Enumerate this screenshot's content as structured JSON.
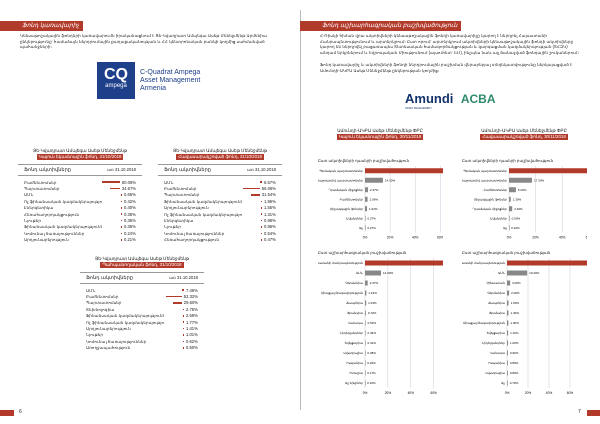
{
  "left": {
    "heading": "Ֆոնդ կառավարիչ",
    "intro": "Կենսաթոշակային ֆոնդերի կառավարումն իրականացնում է Ցե-Կվադրատ Ամպեգա Ասեթ Մենեջմենթ Արմենիա ընկերությունը՝ համաձայն ներդրումային քաղաքականության և ՀՀ կենտրոնական բանկի կողմից սահմանված պահանջների։",
    "logo": {
      "mark": "CQ",
      "sub": "ampega",
      "line1": "C-Quadrat Ampega",
      "line2": "Asset Management",
      "line3": "Armenia"
    },
    "tables": [
      {
        "company": "Ցե-Կվադրատ Ամպեգա Ասեթ Մենեջմենթ",
        "fund": "Կայուն եկամտային ֆոնդ, 31/10/2018",
        "header": "Ֆոնդ ակտիվները",
        "date": "առ 31.10.2018",
        "rows": [
          [
            "Բաժնետոմսեր",
            "60.08%",
            60.08
          ],
          [
            "Պարտատոմսեր",
            "34.67%",
            34.67
          ],
          [
            "ԱՄՆ",
            "0.66%",
            0.66
          ],
          [
            "Ոչ ֆինանսական կազմակերպություններ",
            "0.42%",
            0.42
          ],
          [
            "Էներգետիկա",
            "0.40%",
            0.4
          ],
          [
            "Հեռահաղորդակցություն",
            "0.36%",
            0.36
          ],
          [
            "Նյութեր",
            "0.36%",
            0.36
          ],
          [
            "Ֆինանսական կազմակերպություններ",
            "0.36%",
            0.36
          ],
          [
            "Կոմունալ ծառայություններ",
            "0.24%",
            0.24
          ],
          [
            "Արդյունաբերություն",
            "0.21%",
            0.21
          ]
        ]
      },
      {
        "company": "Ցե-Կվադրատ Ամպեգա Ասեթ Մենեջմենթ",
        "fund": "Հավասարակշռված ֆոնդ, 31/10/2018",
        "header": "Ֆոնդ ակտիվները",
        "date": "առ 31.10.2018",
        "rows": [
          [
            "ԱՄՆ",
            "6.57%",
            6.57
          ],
          [
            "Բաժնետոմսեր",
            "56.06%",
            56.06
          ],
          [
            "Պարտատոմսեր",
            "31.54%",
            31.54
          ],
          [
            "Ֆինանսական կազմակերպություններ",
            "1.96%",
            1.96
          ],
          [
            "Արդյունաբերություն",
            "1.55%",
            1.55
          ],
          [
            "Ոչ ֆինանսական կազմակերպություններ",
            "1.31%",
            1.31
          ],
          [
            "Էներգետիկա",
            "0.98%",
            0.98
          ],
          [
            "Նյութեր",
            "0.96%",
            0.96
          ],
          [
            "Կոմունալ ծառայություններ",
            "0.54%",
            0.54
          ],
          [
            "Հեռահաղորդակցություն",
            "0.47%",
            0.47
          ]
        ]
      },
      {
        "company": "Ցե-Կվադրատ Ամպեգա Ասեթ Մենեջմենթ",
        "fund": "Պահպանողական ֆոնդ, 31/10/2018",
        "header": "Ֆոնդ ակտիվները",
        "date": "առ 31.10.2018",
        "rows": [
          [
            "ԱՄՆ",
            "7.46%",
            7.46
          ],
          [
            "Բաժնետոմսեր",
            "52.32%",
            52.32
          ],
          [
            "Պարտատոմսեր",
            "29.60%",
            29.6
          ],
          [
            "Տեխնոլոգիա",
            "2.75%",
            2.75
          ],
          [
            "Ֆինանսական կազմակերպություններ",
            "2.59%",
            2.59
          ],
          [
            "Ոչ ֆինանսական կազմակերպություններ",
            "1.77%",
            1.77
          ],
          [
            "Արդյունաբերություն",
            "1.41%",
            1.41
          ],
          [
            "Նյութեր",
            "1.01%",
            1.01
          ],
          [
            "Կոմունալ ծառայություններ",
            "0.62%",
            0.62
          ],
          [
            "Առողջապահություն",
            "0.50%",
            0.5
          ]
        ]
      }
    ],
    "page_number": "6"
  },
  "right": {
    "heading": "Ֆոնդ աշխարհագրական բաշխվածություն",
    "intro1": "Հ-Ռիսկի հիման վրա ակտիվների կենսաթոշակային ֆոնդի կառավարիչը կարող է ներդրել Հայաստանի Հանրապետությունում և արտերկրում։ Ըստ որում՝ արտերկրում ակտիվների կենսաթոշակային ֆոնդի ակտիվները կարող են ներդրվել բացառապես Տնտեսական համագործակցության և զարգացման կազմակերպության (ՏՀԶԿ) անդամ երկրներում և Եվրոպական Միությունում (այսուհետ՝ ԵՄ), ինչպես նաև այլ ճանաչված ֆոնդային շուկաներում։",
    "intro2": "Ֆոնդ կառավարիչ և ակտիվների ֆոնդի ներդրումային բաշխման վերաբերյալ տեղեկատվությունը ներկայացված է Ամունդի-ԱԿԲԱ Ասեթ Մենեջմենթ ընկերության կողմից։",
    "logo": {
      "left": "Amundi",
      "right": "ACBA",
      "sub": "ASSET MANAGEMENT"
    },
    "chart_data": [
      {
        "type": "bar",
        "company": "Ամունդի-ԱԿԲԱ Ասեթ Մենեջմենթ ՓԲԸ",
        "fund": "Կայուն եկամտային ֆոնդ, 30/11/2018",
        "title": "Ըստ ակտիվների դասերի բաշխվածություն",
        "categories": [
          "Պետական պարտատոմսեր",
          "Կորպորատիվ պարտատոմսեր",
          "Դրամական միջոցներ",
          "Բաժնետոմսեր",
          "Միջազգային ֆոնդեր",
          "Ավանդներ",
          "Այլ"
        ],
        "values": [
          79.1,
          14.3,
          2.37,
          2.06,
          1.62,
          0.27,
          0.27
        ],
        "labels": [
          "79.10%",
          "14.30%",
          "2.37%",
          "2.06%",
          "1.62%",
          "0.27%",
          "0.27%"
        ],
        "ticks": [
          "0%",
          "20%",
          "40%",
          "60%",
          "80%"
        ],
        "xlim": [
          0,
          90
        ]
      },
      {
        "type": "bar",
        "company": "Ամունդի-ԱԿԲԱ Ասեթ Մենեջմենթ ՓԲԸ",
        "fund": "Հավասարակշռված ֆոնդ, 30/11/2018",
        "title": "Ըստ ակտիվների դասերի բաշխվածություն",
        "categories": [
          "Պետական պարտատոմսեր",
          "Կորպորատիվ պարտատոմսեր",
          "Բաժնետոմսեր",
          "Միջազգային ֆոնդեր",
          "Դրամական միջոցներ",
          "Ավանդներ",
          "Այլ"
        ],
        "values": [
          74.0,
          17.3,
          5.2,
          1.3,
          2.4,
          0.5,
          0.1
        ],
        "labels": [
          "74.00%",
          "17.30%",
          "5.20%",
          "1.30%",
          "2.40%",
          "0.50%",
          "0.10%"
        ],
        "ticks": [
          "0%",
          "20%",
          "40%",
          "60%",
          "80%"
        ],
        "xlim": [
          0,
          85
        ]
      },
      {
        "type": "bar",
        "title": "Ըստ աշխարհագրական բաշխվածության",
        "categories": [
          "Հայաստանի Հանրապետություն",
          "ԱՄՆ",
          "Գերմանիա",
          "Միացյալ Թագավորություն",
          "Ճապոնիա",
          "Ֆրանսիա",
          "Կանադա",
          "Նիդերլանդներ",
          "Շվեյցարիա",
          "Ավստրալիա",
          "Իսպանիա",
          "Իտալիա",
          "Այլ երկրներ"
        ],
        "values": [
          76.5,
          14.0,
          2.37,
          1.19,
          1.03,
          0.72,
          0.53,
          0.46,
          0.41,
          0.38,
          0.26,
          0.17,
          0.16
        ],
        "labels": [
          "76.50%",
          "14.00%",
          "2.37%",
          "1.19%",
          "1.03%",
          "0.72%",
          "0.53%",
          "0.46%",
          "0.41%",
          "0.38%",
          "0.26%",
          "0.17%",
          "0.16%"
        ],
        "ticks": [
          "0%",
          "20%",
          "40%",
          "60%",
          "80%"
        ],
        "xlim": [
          0,
          90
        ]
      },
      {
        "type": "bar",
        "title": "Ըստ աշխարհագրական բաշխվածության",
        "categories": [
          "Հայաստանի Հանրապետություն",
          "ԱՄՆ",
          "Չինաստան",
          "Գերմանիա",
          "Ճապոնիա",
          "Ֆրանսիա",
          "Միացյալ Թագավորություն",
          "Շվեյցարիա",
          "Նիդերլանդներ",
          "Կանադա",
          "Իսպանիա",
          "Ավստրալիա",
          "Այլ"
        ],
        "values": [
          86.3,
          19.2,
          3.0,
          2.0,
          1.5,
          1.4,
          1.3,
          1.1,
          1.0,
          0.9,
          0.8,
          0.8,
          0.7
        ],
        "labels": [
          "86.30%",
          "19.20%",
          "3.00%",
          "2.00%",
          "1.50%",
          "1.40%",
          "1.30%",
          "1.10%",
          "1.00%",
          "0.90%",
          "0.80%",
          "0.80%",
          "0.70%"
        ],
        "ticks": [
          "0%",
          "20%",
          "40%",
          "60%",
          "80%",
          "100%"
        ],
        "xlim": [
          0,
          100
        ]
      }
    ],
    "page_number": "7"
  },
  "colors": {
    "accent": "#b23a2b",
    "bar_secondary": "#888888",
    "grid": "#c5ced8"
  }
}
